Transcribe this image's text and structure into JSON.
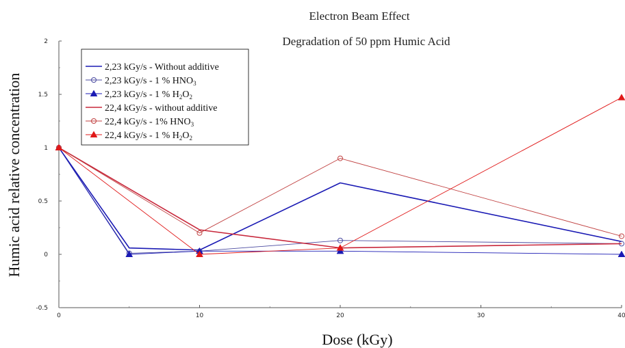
{
  "chart_data": {
    "type": "line",
    "title": "Electron Beam Effect",
    "subtitle": "Degradation of 50 ppm Humic Acid",
    "xlabel": "Dose (kGy)",
    "ylabel": "Humic acid relative concentration",
    "xlim": [
      0,
      40
    ],
    "ylim": [
      -0.5,
      2
    ],
    "xticks": [
      0,
      10,
      20,
      30,
      40
    ],
    "yticks": [
      -0.5,
      0,
      0.5,
      1,
      1.5,
      2
    ],
    "xtick_labels": [
      "0",
      "10",
      "20",
      "30",
      "40"
    ],
    "ytick_labels": [
      "-0.5",
      "0",
      "0.5",
      "1",
      "1.5",
      "2"
    ],
    "grid": false,
    "legend_position": "top-left",
    "series": [
      {
        "name": "2,23 kGy/s - Without additive",
        "color": "#1a1ab4",
        "width": 1.6,
        "marker": "none",
        "x": [
          0,
          5,
          10,
          20,
          40
        ],
        "y": [
          1.0,
          0.06,
          0.04,
          0.67,
          0.12
        ]
      },
      {
        "name": "2,23 kGy/s - 1 % HNO3",
        "name_parts": [
          "2,23 kGy/s - 1 % HNO",
          "3",
          ""
        ],
        "color": "#4a4aa0",
        "width": 0.9,
        "marker": "circle-open",
        "x": [
          0,
          5,
          10,
          20,
          40
        ],
        "y": [
          1.0,
          0.01,
          0.03,
          0.13,
          0.1
        ]
      },
      {
        "name": "2,23 kGy/s - 1 % H2O2",
        "name_parts": [
          "2,23 kGy/s - 1 % H",
          "2",
          "O",
          "2",
          ""
        ],
        "color": "#1a1ab4",
        "width": 0.9,
        "marker": "triangle-filled",
        "x": [
          0,
          5,
          10,
          20,
          40
        ],
        "y": [
          1.0,
          0.0,
          0.03,
          0.03,
          0.0
        ]
      },
      {
        "name": "22,4 kGy/s - without additive",
        "color": "#c8283c",
        "width": 1.6,
        "marker": "none",
        "x": [
          0,
          10,
          20,
          40
        ],
        "y": [
          1.0,
          0.23,
          0.06,
          0.1
        ]
      },
      {
        "name": "22,4 kGy/s - 1% HNO3",
        "name_parts": [
          "22,4 kGy/s - 1% HNO",
          "3",
          ""
        ],
        "color": "#c04040",
        "width": 0.9,
        "marker": "circle-open",
        "x": [
          0,
          10,
          20,
          40
        ],
        "y": [
          1.0,
          0.2,
          0.9,
          0.17
        ]
      },
      {
        "name": "22,4 kGy/s - 1 % H2O2",
        "name_parts": [
          "22,4 kGy/s - 1 % H",
          "2",
          "O",
          "2",
          ""
        ],
        "color": "#e01818",
        "width": 0.9,
        "marker": "triangle-filled",
        "x": [
          0,
          10,
          20,
          40
        ],
        "y": [
          1.0,
          0.0,
          0.06,
          1.47
        ]
      }
    ]
  }
}
